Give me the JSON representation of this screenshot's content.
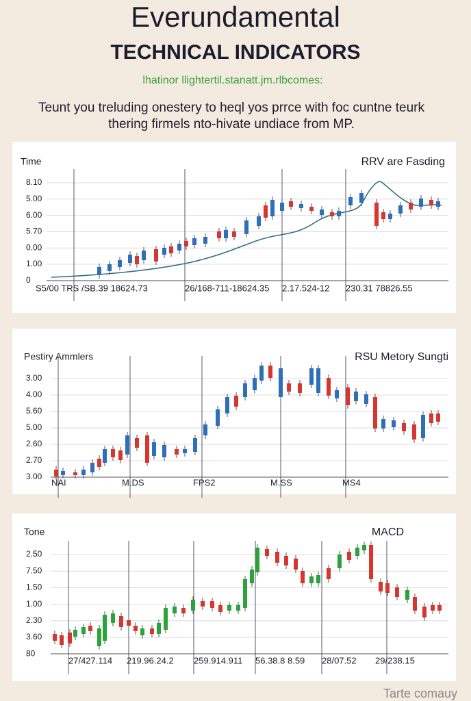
{
  "header": {
    "title": "Everundamental",
    "heading": "TECHNICAL INDICATORS",
    "subtitle": "lhatinor llightertil.stanatt.jm.rlbcomes:",
    "description": [
      "Teunt you treluding onestery to heql yos prrce with foc cuntne teurk",
      "thering firmels nto-hivate undiace from MP."
    ]
  },
  "panels": [
    {
      "left_title": "Time",
      "right_title": "RRV are Fasding",
      "y_labels": [
        "8.10",
        "5.00",
        "6.00",
        "5.70",
        "0.00",
        "1.00",
        "0"
      ],
      "x_labels": [
        "S5/00 TRS /SB.39 18624.73",
        "26/168-711-18624.35",
        "2.17.524-12",
        "230.31 78826.55"
      ]
    },
    {
      "left_title": "Pestiry Ammlers",
      "right_title": "RSU Metory Sungti",
      "y_labels": [
        "3.00",
        "4.00",
        "5.60",
        "5.00",
        "2.60",
        "2.70",
        "3.00"
      ],
      "x_labels": [
        "NAI",
        "M.DS",
        "FPS2",
        "M.SS",
        "MS4"
      ]
    },
    {
      "left_title": "Tone",
      "right_title": "MACD",
      "y_labels": [
        "2.50",
        "7.50",
        "1.50",
        "1.00",
        "2.30",
        "3.60",
        "80"
      ],
      "x_labels": [
        "27/427.114",
        "219.96.24.2",
        "259.914.911",
        "56.38.8 8.59",
        "28/07.52",
        "29/238.15"
      ]
    }
  ],
  "footer": "Tarte comauy"
}
